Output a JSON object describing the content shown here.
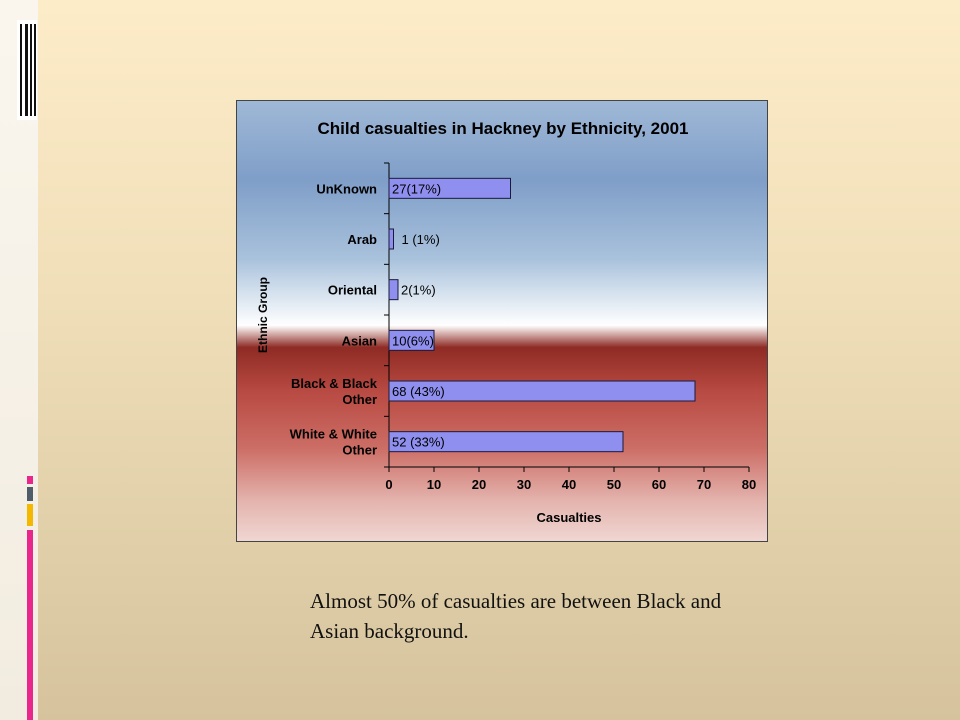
{
  "slide": {
    "caption": "Almost 50% of casualties are between Black and Asian background."
  },
  "decor": {
    "icon": "columns-decor-icon",
    "accent_colors": [
      "#e8268c",
      "#4f5d6b",
      "#f5b800"
    ]
  },
  "chart_data": {
    "type": "bar",
    "orientation": "horizontal",
    "title": "Child casualties in Hackney by Ethnicity, 2001",
    "xlabel": "Casualties",
    "ylabel": "Ethnic Group",
    "xlim": [
      0,
      80
    ],
    "xticks": [
      0,
      10,
      20,
      30,
      40,
      50,
      60,
      70,
      80
    ],
    "categories": [
      "UnKnown",
      "Arab",
      "Oriental",
      "Asian",
      "Black & Black Other",
      "White & White Other"
    ],
    "values": [
      27,
      1,
      2,
      10,
      68,
      52
    ],
    "data_labels": [
      "27(17%)",
      "1 (1%)",
      "2(1%)",
      "10(6%)",
      "68 (43%)",
      "52 (33%)"
    ],
    "bar_color": "#8f8ff0",
    "grid": false,
    "legend": "none"
  }
}
